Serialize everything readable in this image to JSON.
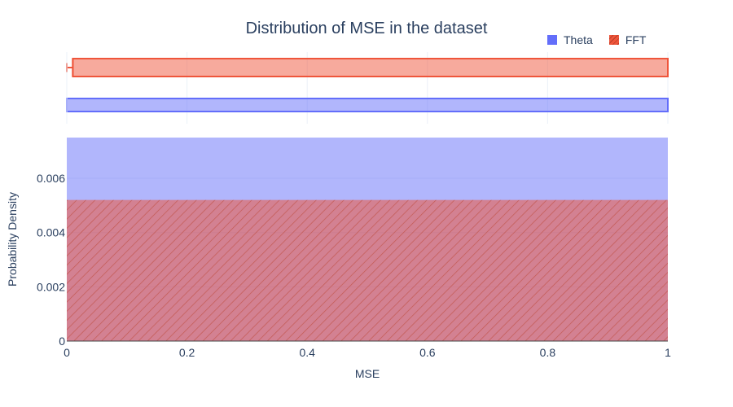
{
  "chart_data": {
    "type": "histogram",
    "title": "Distribution of MSE in the dataset",
    "xlabel": "MSE",
    "ylabel": "Probability Density",
    "xlim": [
      0,
      1
    ],
    "ylim": [
      0,
      0.0075
    ],
    "x_ticks": [
      0,
      0.2,
      0.4,
      0.6,
      0.8,
      1
    ],
    "x_tick_labels": [
      "0",
      "0.2",
      "0.4",
      "0.6",
      "0.8",
      "1"
    ],
    "y_ticks": [
      0,
      0.002,
      0.004,
      0.006
    ],
    "y_tick_labels": [
      "0",
      "0.002",
      "0.004",
      "0.006"
    ],
    "legend_position": "top-right",
    "series": [
      {
        "name": "Theta",
        "color": "#636efa",
        "histogram": {
          "x_start": 0,
          "x_end": 1,
          "density": 0.0075
        },
        "box": {
          "min": 0,
          "q1": 0,
          "median": 0,
          "q3": 1,
          "max": 1
        }
      },
      {
        "name": "FFT",
        "color": "#ef553b",
        "pattern": "diagonal-hatch",
        "histogram": {
          "x_start": 0,
          "x_end": 1,
          "density": 0.0052
        },
        "box": {
          "min": 0,
          "q1": 0.01,
          "median": 0.01,
          "q3": 1,
          "max": 1
        }
      }
    ]
  }
}
